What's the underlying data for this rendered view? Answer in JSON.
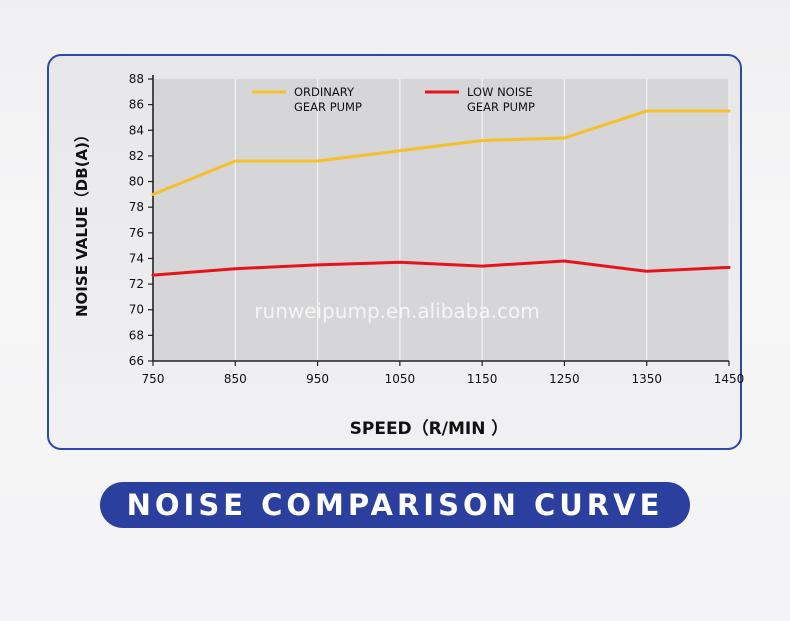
{
  "banner_title": "NOISE COMPARISON CURVE",
  "watermark": "runweipump.en.alibaba.com",
  "colors": {
    "frame": "#2e4aa8",
    "banner": "#2a3f9e",
    "plot_bg": "#d6d6d8",
    "ordinary": "#f4c12a",
    "low_noise": "#e5141b"
  },
  "chart_data": {
    "type": "line",
    "title": "",
    "xlabel": "SPEED（R/MIN ）",
    "ylabel": "NOISE VALUE（DB(A)）",
    "x": [
      750,
      850,
      950,
      1050,
      1150,
      1250,
      1350,
      1450
    ],
    "x_tick_labels": [
      "750",
      "850",
      "950",
      "1050",
      "1150",
      "1250",
      "1350",
      "1450"
    ],
    "xlim": [
      750,
      1450
    ],
    "ylim": [
      66,
      88
    ],
    "y_ticks": [
      66,
      68,
      70,
      72,
      74,
      76,
      78,
      80,
      82,
      84,
      86,
      88
    ],
    "grid": "vertical",
    "legend_position": "top",
    "series": [
      {
        "name": "ORDINARY GEAR PUMP",
        "legend_lines": [
          "ORDINARY",
          "GEAR PUMP"
        ],
        "color": "#f4c12a",
        "values": [
          79.0,
          81.6,
          81.6,
          82.4,
          83.2,
          83.4,
          85.5,
          85.5
        ]
      },
      {
        "name": "LOW NOISE GEAR PUMP",
        "legend_lines": [
          "LOW NOISE",
          "GEAR PUMP"
        ],
        "color": "#e5141b",
        "values": [
          72.7,
          73.2,
          73.5,
          73.7,
          73.4,
          73.8,
          73.0,
          73.3
        ]
      }
    ]
  }
}
